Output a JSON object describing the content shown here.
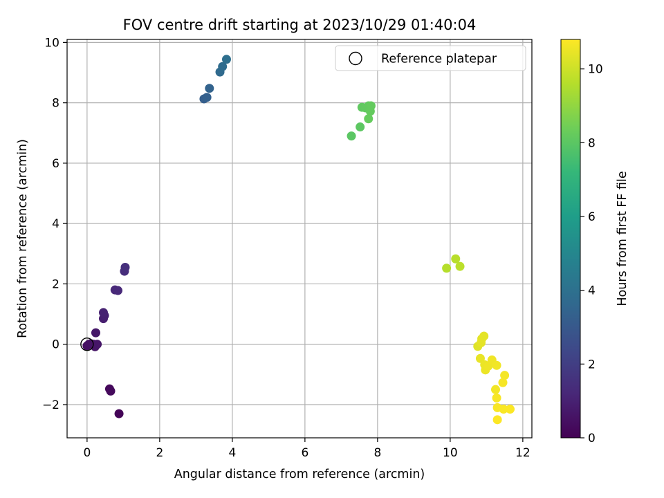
{
  "chart_data": {
    "type": "scatter",
    "title": "FOV centre drift starting at 2023/10/29 01:40:04",
    "xlabel": "Angular distance from reference (arcmin)",
    "ylabel": "Rotation from reference (arcmin)",
    "xlim": [
      -0.55,
      12.25
    ],
    "ylim": [
      -3.1,
      10.1
    ],
    "xticks": [
      0,
      2,
      4,
      6,
      8,
      10,
      12
    ],
    "yticks": [
      -2,
      0,
      2,
      4,
      6,
      8,
      10
    ],
    "tick_labels_x": [
      "0",
      "2",
      "4",
      "6",
      "8",
      "10",
      "12"
    ],
    "tick_labels_y": [
      "−2",
      "0",
      "2",
      "4",
      "6",
      "8",
      "10"
    ],
    "grid": true,
    "legend": {
      "position": "top-right",
      "entries": [
        {
          "label": "Reference platepar",
          "marker": "open-circle"
        }
      ]
    },
    "reference_point": {
      "x": 0,
      "y": 0
    },
    "colorbar": {
      "label": "Hours from first FF file",
      "colormap": "viridis",
      "range": [
        0,
        10.8
      ],
      "ticks": [
        0,
        2,
        4,
        6,
        8,
        10
      ],
      "tick_labels": [
        "0",
        "2",
        "4",
        "6",
        "8",
        "10"
      ]
    },
    "points": [
      {
        "x": 0.88,
        "y": -2.3,
        "hours": 0.1
      },
      {
        "x": 0.62,
        "y": -1.48,
        "hours": 0.2
      },
      {
        "x": 0.65,
        "y": -1.55,
        "hours": 0.25
      },
      {
        "x": 0.05,
        "y": 0.0,
        "hours": 0.4
      },
      {
        "x": 0.0,
        "y": -0.05,
        "hours": 0.45
      },
      {
        "x": 0.1,
        "y": 0.02,
        "hours": 0.5
      },
      {
        "x": 0.18,
        "y": 0.0,
        "hours": 0.55
      },
      {
        "x": 0.22,
        "y": -0.08,
        "hours": 0.6
      },
      {
        "x": 0.28,
        "y": 0.0,
        "hours": 0.65
      },
      {
        "x": 0.24,
        "y": 0.38,
        "hours": 0.7
      },
      {
        "x": 0.45,
        "y": 0.85,
        "hours": 0.9
      },
      {
        "x": 0.48,
        "y": 0.95,
        "hours": 0.95
      },
      {
        "x": 0.45,
        "y": 1.05,
        "hours": 1.0
      },
      {
        "x": 0.77,
        "y": 1.8,
        "hours": 1.2
      },
      {
        "x": 0.85,
        "y": 1.78,
        "hours": 1.25
      },
      {
        "x": 1.03,
        "y": 2.42,
        "hours": 1.4
      },
      {
        "x": 1.05,
        "y": 2.55,
        "hours": 1.45
      },
      {
        "x": 3.22,
        "y": 8.13,
        "hours": 3.2
      },
      {
        "x": 3.3,
        "y": 8.18,
        "hours": 3.3
      },
      {
        "x": 3.37,
        "y": 8.48,
        "hours": 3.4
      },
      {
        "x": 3.66,
        "y": 9.02,
        "hours": 3.7
      },
      {
        "x": 3.73,
        "y": 9.2,
        "hours": 3.8
      },
      {
        "x": 3.84,
        "y": 9.44,
        "hours": 3.9
      },
      {
        "x": 7.28,
        "y": 6.9,
        "hours": 8.0
      },
      {
        "x": 7.52,
        "y": 7.2,
        "hours": 8.05
      },
      {
        "x": 7.57,
        "y": 7.85,
        "hours": 8.1
      },
      {
        "x": 7.67,
        "y": 7.83,
        "hours": 8.12
      },
      {
        "x": 7.75,
        "y": 7.9,
        "hours": 8.15
      },
      {
        "x": 7.82,
        "y": 7.9,
        "hours": 8.18
      },
      {
        "x": 7.8,
        "y": 7.72,
        "hours": 8.2
      },
      {
        "x": 7.75,
        "y": 7.47,
        "hours": 8.22
      },
      {
        "x": 9.9,
        "y": 2.52,
        "hours": 9.6
      },
      {
        "x": 10.15,
        "y": 2.83,
        "hours": 9.65
      },
      {
        "x": 10.27,
        "y": 2.58,
        "hours": 9.7
      },
      {
        "x": 10.76,
        "y": -0.07,
        "hours": 10.3
      },
      {
        "x": 10.87,
        "y": 0.18,
        "hours": 10.35
      },
      {
        "x": 10.93,
        "y": 0.27,
        "hours": 10.38
      },
      {
        "x": 10.85,
        "y": 0.05,
        "hours": 10.4
      },
      {
        "x": 10.83,
        "y": -0.47,
        "hours": 10.45
      },
      {
        "x": 10.95,
        "y": -0.68,
        "hours": 10.5
      },
      {
        "x": 10.97,
        "y": -0.85,
        "hours": 10.52
      },
      {
        "x": 11.05,
        "y": -0.72,
        "hours": 10.55
      },
      {
        "x": 11.15,
        "y": -0.52,
        "hours": 10.58
      },
      {
        "x": 11.28,
        "y": -0.7,
        "hours": 10.6
      },
      {
        "x": 11.25,
        "y": -1.5,
        "hours": 10.62
      },
      {
        "x": 11.5,
        "y": -1.03,
        "hours": 10.65
      },
      {
        "x": 11.45,
        "y": -1.27,
        "hours": 10.68
      },
      {
        "x": 11.28,
        "y": -1.78,
        "hours": 10.7
      },
      {
        "x": 11.3,
        "y": -2.1,
        "hours": 10.72
      },
      {
        "x": 11.47,
        "y": -2.15,
        "hours": 10.74
      },
      {
        "x": 11.65,
        "y": -2.15,
        "hours": 10.76
      },
      {
        "x": 11.3,
        "y": -2.5,
        "hours": 10.78
      }
    ]
  }
}
